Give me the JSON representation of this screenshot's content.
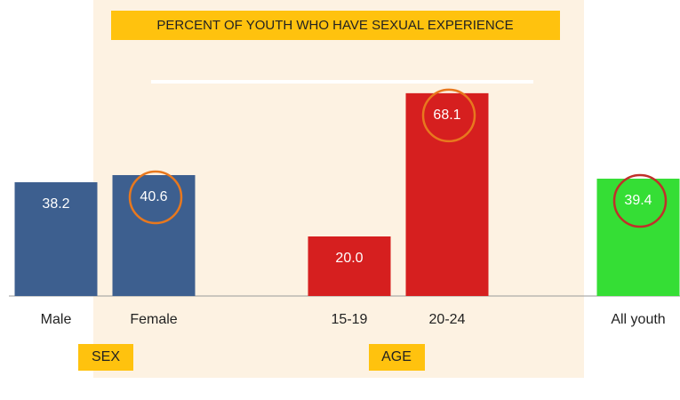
{
  "chart_data": {
    "type": "bar",
    "title": "PERCENT OF YOUTH WHO HAVE SEXUAL EXPERIENCE",
    "categories": [
      "Male",
      "Female",
      null,
      "15-19",
      "20-24",
      null,
      "All youth"
    ],
    "values": [
      38.2,
      40.6,
      null,
      20.0,
      68.1,
      null,
      39.4
    ],
    "value_labels": [
      "38.2",
      "40.6",
      null,
      "20.0",
      "68.1",
      null,
      "39.4"
    ],
    "colors": [
      "#3d5f8f",
      "#3d5f8f",
      null,
      "#d61f1f",
      "#d61f1f",
      null,
      "#35de35"
    ],
    "highlight_colors": [
      null,
      "#e8781e",
      null,
      null,
      "#e8781e",
      null,
      "#c0302a"
    ],
    "annotations": [
      "SEX",
      "AGE"
    ],
    "ylim": [
      0,
      90
    ]
  }
}
